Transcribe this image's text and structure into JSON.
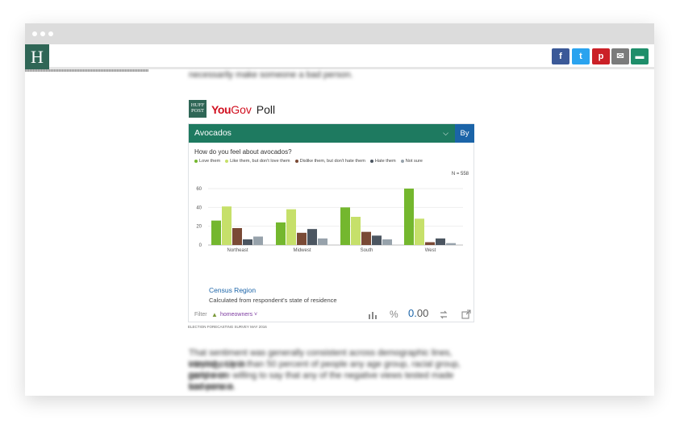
{
  "site_logo": "H",
  "share_buttons": [
    {
      "name": "facebook-share-button",
      "icon": "f",
      "color": "#3b5998"
    },
    {
      "name": "twitter-share-button",
      "icon": "t",
      "color": "#2aa3ef"
    },
    {
      "name": "pinterest-share-button",
      "icon": "p",
      "color": "#cb2027"
    },
    {
      "name": "email-share-button",
      "icon": "✉",
      "color": "#7b7b7b"
    },
    {
      "name": "comment-share-button",
      "icon": "▬",
      "color": "#1e8e6a"
    }
  ],
  "article": {
    "top_text": "necessarily make someone a bad person.",
    "bottom_text": [
      "That sentiment was generally consistent across demographic lines, varying only in",
      "intensity. Less than 50 percent of people any age group, racial group, gender or",
      "party were willing to say that any of the negative views tested made someone a",
      "bad person."
    ]
  },
  "poll": {
    "hp_logo": "HUFF POST",
    "brand_you": "You",
    "brand_gov": "Gov",
    "brand_poll": "Poll",
    "topic": "Avocados",
    "by_label": "By",
    "question": "How do you feel about avocados?",
    "legend": [
      {
        "label": "Love them",
        "color": "#74b72e"
      },
      {
        "label": "Like them, but don't love them",
        "color": "#c6e06a"
      },
      {
        "label": "Dislike them, but don't hate them",
        "color": "#7a4a35"
      },
      {
        "label": "Hate them",
        "color": "#4b5560"
      },
      {
        "label": "Not sure",
        "color": "#97a2ab"
      }
    ],
    "n_label": "N = 558",
    "region_link": "Census Region",
    "region_note": "Calculated from respondent's state of residence",
    "filter_label": "Filter",
    "filter_value": "homeowners",
    "decimals_int": "0.",
    "decimals_dec": "00",
    "source": "ELECTION FORECASTING SURVEY MAY 2016"
  },
  "chart_data": {
    "type": "bar",
    "categories": [
      "Northeast",
      "Midwest",
      "South",
      "West"
    ],
    "series": [
      {
        "name": "Love them",
        "values": [
          26,
          24,
          40,
          60
        ]
      },
      {
        "name": "Like them, but don't love them",
        "values": [
          41,
          38,
          30,
          28
        ]
      },
      {
        "name": "Dislike them, but don't hate them",
        "values": [
          18,
          13,
          14,
          3
        ]
      },
      {
        "name": "Hate them",
        "values": [
          6,
          17,
          10,
          7
        ]
      },
      {
        "name": "Not sure",
        "values": [
          9,
          7,
          6,
          2
        ]
      }
    ],
    "colors": [
      "#74b72e",
      "#c6e06a",
      "#7a4a35",
      "#4b5560",
      "#97a2ab"
    ],
    "yticks": [
      0,
      20,
      40,
      60
    ],
    "ylim": [
      0,
      60
    ],
    "grid": true,
    "legend_position": "top-left",
    "xlabel": "",
    "ylabel": ""
  }
}
